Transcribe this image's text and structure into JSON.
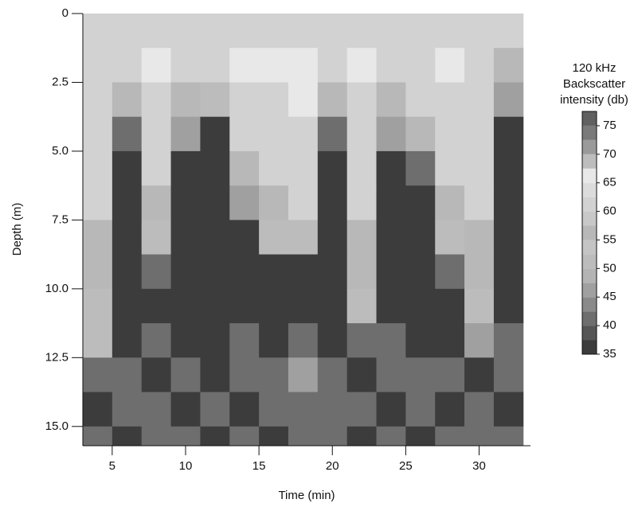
{
  "chart_data": {
    "type": "heatmap",
    "xlabel": "Time (min)",
    "ylabel": "Depth (m)",
    "xlim": [
      3,
      33.5
    ],
    "xticks": [
      5,
      10,
      15,
      20,
      25,
      30
    ],
    "ylim": [
      0,
      15.7
    ],
    "yticks": [
      0,
      2.5,
      {
        "value": 5,
        "label": "5.0"
      },
      7.5,
      {
        "value": 10,
        "label": "10.0"
      },
      12.5,
      {
        "value": 15,
        "label": "15.0"
      }
    ],
    "x": [
      4,
      6,
      8,
      10,
      12,
      14,
      16,
      18,
      20,
      22,
      24,
      26,
      28,
      30,
      32
    ],
    "y": [
      0.625,
      1.875,
      3.125,
      4.375,
      5.625,
      6.875,
      8.125,
      9.375,
      10.625,
      11.875,
      13.125,
      14.375,
      15.625
    ],
    "z": [
      [
        62,
        60,
        62,
        60,
        60,
        62,
        62,
        62,
        60,
        62,
        60,
        62,
        62,
        60,
        60
      ],
      [
        62,
        62,
        65,
        62,
        60,
        65,
        65,
        65,
        62,
        65,
        62,
        62,
        65,
        62,
        55
      ],
      [
        62,
        55,
        62,
        55,
        52,
        62,
        62,
        65,
        55,
        62,
        55,
        60,
        62,
        62,
        45
      ],
      [
        62,
        40,
        62,
        45,
        37,
        60,
        62,
        62,
        40,
        62,
        45,
        55,
        62,
        62,
        36
      ],
      [
        60,
        36,
        60,
        37,
        36,
        55,
        60,
        62,
        36,
        60,
        37,
        42,
        60,
        60,
        36
      ],
      [
        60,
        36,
        55,
        36,
        36,
        45,
        57,
        60,
        36,
        60,
        36,
        36,
        57,
        60,
        36
      ],
      [
        57,
        36,
        50,
        36,
        36,
        37,
        50,
        50,
        36,
        57,
        36,
        36,
        52,
        57,
        36
      ],
      [
        55,
        36,
        40,
        36,
        36,
        36,
        37,
        36,
        36,
        55,
        36,
        36,
        40,
        55,
        36
      ],
      [
        52,
        36,
        36,
        36,
        36,
        36,
        36,
        36,
        36,
        50,
        36,
        36,
        36,
        50,
        36
      ],
      [
        50,
        36,
        42,
        36,
        36,
        42,
        36,
        42,
        36,
        40,
        42,
        36,
        36,
        45,
        40
      ],
      [
        40,
        42,
        36,
        42,
        36,
        42,
        42,
        45,
        42,
        36,
        42,
        40,
        42,
        36,
        42
      ],
      [
        36,
        42,
        42,
        36,
        42,
        36,
        42,
        42,
        42,
        42,
        36,
        42,
        36,
        42,
        36
      ],
      [
        42,
        36,
        42,
        42,
        36,
        42,
        36,
        42,
        42,
        36,
        42,
        36,
        42,
        42,
        42
      ]
    ],
    "colorbar": {
      "title": [
        "120 kHz",
        "Backscatter",
        "intensity (db)"
      ],
      "levels": [
        35,
        37.5,
        40,
        42.5,
        45,
        47.5,
        50,
        52.5,
        55,
        57.5,
        60,
        62.5,
        65,
        67.5,
        70,
        72.5,
        75,
        77.5
      ],
      "colors": [
        "#3c3c3c",
        "#555555",
        "#6e6e6e",
        "#8a8a8a",
        "#a0a0a0",
        "#b4b4b4",
        "#bcbcbc",
        "#c4c4c4",
        "#b8b8b8",
        "#c8c8c8",
        "#d2d2d2",
        "#dcdcdc",
        "#e8e8e8",
        "#bdbdbd",
        "#9a9a9a",
        "#7a7a7a",
        "#606060"
      ],
      "ticks": [
        35,
        40,
        45,
        50,
        55,
        60,
        65,
        70,
        75
      ]
    }
  }
}
